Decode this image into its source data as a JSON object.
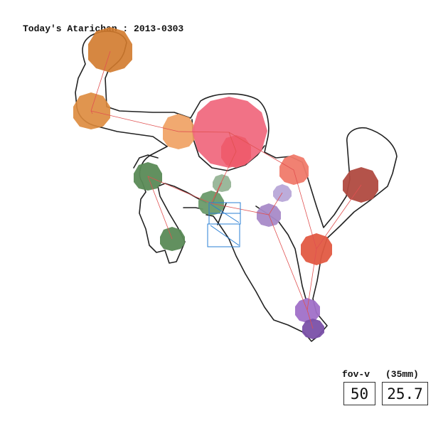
{
  "title": "Today's Atarichan : 2013-0303",
  "fov": {
    "label": "fov-v",
    "lens_label": "(35mm)",
    "value": "50",
    "lens_value": "25.7"
  },
  "colors": {
    "background": "#ffffff",
    "outline": "#222222",
    "bone": "#e05050",
    "camera": "#2a7fd4"
  }
}
